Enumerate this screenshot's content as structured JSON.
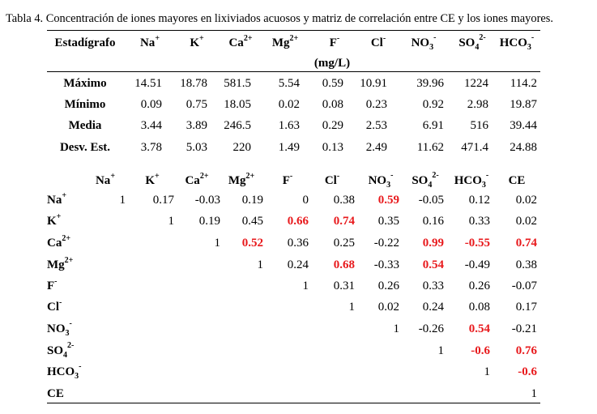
{
  "title": "Tabla 4. Concentración de iones mayores en lixiviados acuosos y matriz de correlación entre CE y los iones mayores.",
  "summary_table": {
    "header": "Estadígrafo",
    "unit": "(mg/L)",
    "columns": [
      {
        "base": "Na",
        "sup": "+"
      },
      {
        "base": "K",
        "sup": "+"
      },
      {
        "base": "Ca",
        "sup": "2+"
      },
      {
        "base": "Mg",
        "sup": "2+"
      },
      {
        "base": "F",
        "sup": "-"
      },
      {
        "base": "Cl",
        "sup": "-"
      },
      {
        "base": "NO",
        "sub": "3",
        "sup": "-"
      },
      {
        "base": "SO",
        "sub": "4",
        "sup": "2-"
      },
      {
        "base": "HCO",
        "sub": "3",
        "sup": "-"
      }
    ],
    "rows": [
      {
        "label": "Máximo",
        "values": [
          14.51,
          18.78,
          581.5,
          5.54,
          0.59,
          10.91,
          39.96,
          1224,
          114.2
        ]
      },
      {
        "label": "Mínimo",
        "values": [
          0.09,
          0.75,
          18.05,
          0.02,
          0.08,
          0.23,
          0.92,
          2.98,
          19.87
        ]
      },
      {
        "label": "Media",
        "values": [
          3.44,
          3.89,
          246.5,
          1.63,
          0.29,
          2.53,
          6.91,
          516,
          39.44
        ]
      },
      {
        "label": "Desv. Est.",
        "values": [
          3.78,
          5.03,
          220,
          1.49,
          0.13,
          2.49,
          11.62,
          471.4,
          24.88
        ]
      }
    ]
  },
  "correlation_table": {
    "columns": [
      {
        "base": "Na",
        "sup": "+"
      },
      {
        "base": "K",
        "sup": "+"
      },
      {
        "base": "Ca",
        "sup": "2+"
      },
      {
        "base": "Mg",
        "sup": "2+"
      },
      {
        "base": "F",
        "sup": "-"
      },
      {
        "base": "Cl",
        "sup": "-"
      },
      {
        "base": "NO",
        "sub": "3",
        "sup": "-"
      },
      {
        "base": "SO",
        "sub": "4",
        "sup": "2-"
      },
      {
        "base": "HCO",
        "sub": "3",
        "sup": "-"
      },
      {
        "base": "CE"
      }
    ],
    "rows": [
      {
        "label": {
          "base": "Na",
          "sup": "+"
        },
        "values": [
          1,
          0.17,
          -0.03,
          0.19,
          0,
          0.38,
          0.59,
          -0.05,
          0.12,
          0.02
        ]
      },
      {
        "label": {
          "base": "K",
          "sup": "+"
        },
        "values": [
          null,
          1,
          0.19,
          0.45,
          0.66,
          0.74,
          0.35,
          0.16,
          0.33,
          0.02
        ]
      },
      {
        "label": {
          "base": "Ca",
          "sup": "2+"
        },
        "values": [
          null,
          null,
          1,
          0.52,
          0.36,
          0.25,
          -0.22,
          0.99,
          -0.55,
          0.74
        ]
      },
      {
        "label": {
          "base": "Mg",
          "sup": "2+"
        },
        "values": [
          null,
          null,
          null,
          1,
          0.24,
          0.68,
          -0.33,
          0.54,
          -0.49,
          0.38
        ]
      },
      {
        "label": {
          "base": "F",
          "sup": "-"
        },
        "values": [
          null,
          null,
          null,
          null,
          1,
          0.31,
          0.26,
          0.33,
          0.26,
          -0.07
        ]
      },
      {
        "label": {
          "base": "Cl",
          "sup": "-"
        },
        "values": [
          null,
          null,
          null,
          null,
          null,
          1,
          0.02,
          0.24,
          0.08,
          0.17
        ]
      },
      {
        "label": {
          "base": "NO",
          "sub": "3",
          "sup": "-"
        },
        "values": [
          null,
          null,
          null,
          null,
          null,
          null,
          1,
          -0.26,
          0.54,
          -0.21
        ]
      },
      {
        "label": {
          "base": "SO",
          "sub": "4",
          "sup": "2-"
        },
        "values": [
          null,
          null,
          null,
          null,
          null,
          null,
          null,
          1,
          -0.6,
          0.76
        ]
      },
      {
        "label": {
          "base": "HCO",
          "sub": "3",
          "sup": "-"
        },
        "values": [
          null,
          null,
          null,
          null,
          null,
          null,
          null,
          null,
          1,
          -0.6
        ]
      },
      {
        "label": {
          "base": "CE"
        },
        "values": [
          null,
          null,
          null,
          null,
          null,
          null,
          null,
          null,
          null,
          1
        ]
      }
    ],
    "highlight_color": "#e8191c",
    "highlighted": [
      [
        0,
        6
      ],
      [
        1,
        4
      ],
      [
        1,
        5
      ],
      [
        2,
        3
      ],
      [
        2,
        7
      ],
      [
        2,
        8
      ],
      [
        2,
        9
      ],
      [
        3,
        5
      ],
      [
        3,
        7
      ],
      [
        6,
        8
      ],
      [
        7,
        8
      ],
      [
        7,
        9
      ],
      [
        8,
        9
      ]
    ]
  }
}
